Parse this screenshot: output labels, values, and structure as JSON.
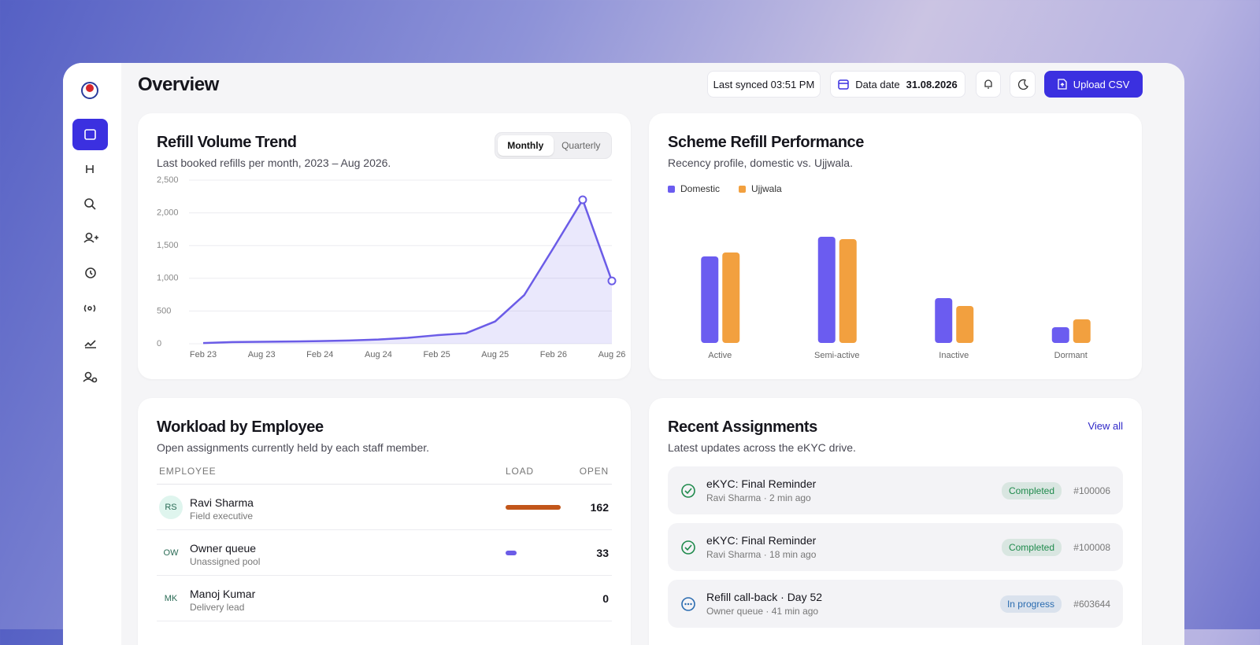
{
  "header": {
    "title": "Overview",
    "last_synced": "Last synced 03:51 PM",
    "data_date_label": "Data date",
    "data_date": "31.08.2026",
    "upload_button": "Upload CSV"
  },
  "refill_trend_toggle": [
    "Monthly",
    "Quarterly"
  ],
  "chart_data": [
    {
      "type": "line",
      "title": "Refill Volume Trend",
      "subtitle": "Last booked refills per month, 2023 – Aug 2026.",
      "categories": [
        "Feb 23",
        null,
        "Aug 23",
        null,
        "Feb 24",
        null,
        "Aug 24",
        null,
        "Feb 25",
        null,
        "Aug 25",
        null,
        "Feb 26",
        null,
        "Aug 26"
      ],
      "values": [
        10,
        25,
        30,
        35,
        40,
        50,
        65,
        90,
        130,
        160,
        340,
        745,
        1465,
        2200,
        960
      ],
      "color": "#6b5ce7",
      "ylim": [
        0,
        2500
      ],
      "yticks": [
        0,
        500,
        {
          "value": 1000,
          "label": "1,000"
        },
        {
          "value": 1500,
          "label": "1,500"
        },
        {
          "value": 2000,
          "label": "2,000"
        },
        {
          "value": 2500,
          "label": "2,500"
        }
      ],
      "grid": true
    },
    {
      "type": "bar",
      "title": "Scheme Refill Performance",
      "subtitle": "Recency profile, domestic vs. Ujjwala.",
      "categories": [
        "Active",
        "Semi-active",
        "Inactive",
        "Dormant"
      ],
      "series": [
        {
          "name": "Domestic",
          "color": "#6b5cf0",
          "values": [
            110,
            135,
            57,
            20
          ]
        },
        {
          "name": "Ujjwala",
          "color": "#f2a03f",
          "values": [
            115,
            132,
            47,
            30
          ]
        }
      ],
      "ylim": [
        0,
        180
      ],
      "legend": "top-left"
    }
  ],
  "workload": {
    "title": "Workload by Employee",
    "subtitle": "Open assignments currently held by each staff member.",
    "columns": [
      "EMPLOYEE",
      "LOAD",
      "OPEN"
    ],
    "rows": [
      {
        "initials": "RS",
        "name": "Ravi Sharma",
        "role": "Field executive",
        "open": 162,
        "load_color": "#c2561a",
        "avatar_color": "#dff5ee"
      },
      {
        "initials": "OW",
        "name": "Owner queue",
        "role": "Unassigned pool",
        "open": 33,
        "load_color": "#6b5ce7"
      },
      {
        "initials": "MK",
        "name": "Manoj Kumar",
        "role": "Delivery lead",
        "open": 0,
        "load_color": "#6b5ce7"
      }
    ]
  },
  "recent": {
    "title": "Recent Assignments",
    "subtitle": "Latest updates across the eKYC drive.",
    "link": "View all",
    "items": [
      {
        "title": "eKYC: Final Reminder",
        "meta": "Ravi Sharma · 2 min ago",
        "status": "Completed",
        "id": "#100006",
        "status_color": "#1f8a4c",
        "icon": "check"
      },
      {
        "title": "eKYC: Final Reminder",
        "meta": "Ravi Sharma · 18 min ago",
        "status": "Completed",
        "id": "#100008",
        "status_color": "#1f8a4c",
        "icon": "check"
      },
      {
        "title": "Refill call-back · Day 52",
        "meta": "Owner queue · 41 min ago",
        "status": "In progress",
        "id": "#603644",
        "status_color": "#2b6cb0",
        "icon": "more"
      }
    ]
  }
}
